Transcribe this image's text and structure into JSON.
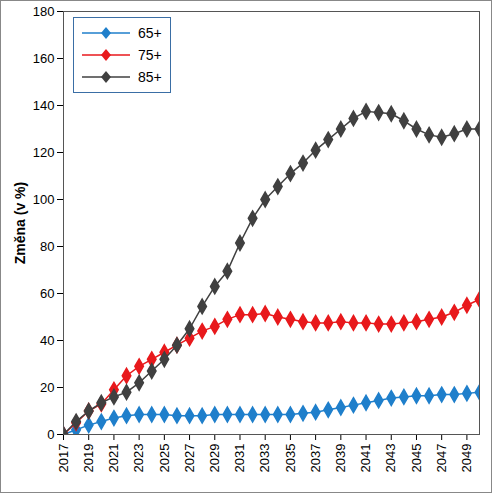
{
  "chart_data": {
    "type": "line",
    "y_label": "Změna (v %)",
    "x": [
      2017,
      2018,
      2019,
      2020,
      2021,
      2022,
      2023,
      2024,
      2025,
      2026,
      2027,
      2028,
      2029,
      2030,
      2031,
      2032,
      2033,
      2034,
      2035,
      2036,
      2037,
      2038,
      2039,
      2040,
      2041,
      2042,
      2043,
      2044,
      2045,
      2046,
      2047,
      2048,
      2049,
      2050
    ],
    "series": [
      {
        "name": "65+",
        "color": "#1f7fcb",
        "values": [
          0,
          2,
          4,
          5.5,
          7,
          8,
          8.5,
          8.5,
          8.5,
          8,
          8,
          8,
          8.5,
          8.5,
          8.5,
          8.5,
          8.5,
          8.5,
          8.5,
          9,
          9.5,
          10.5,
          11.5,
          12.5,
          13.5,
          14.5,
          15.5,
          16,
          16.5,
          16.5,
          17,
          17,
          17.5,
          18
        ]
      },
      {
        "name": "75+",
        "color": "#e8191c",
        "values": [
          0,
          5,
          10,
          13,
          19,
          25,
          29,
          32,
          35,
          38,
          41,
          44,
          46,
          49,
          51,
          51,
          51.5,
          50,
          49,
          48,
          47.5,
          47.5,
          48,
          47.5,
          47.5,
          47,
          47,
          47.5,
          48,
          49,
          50,
          52,
          55,
          57.5
        ]
      },
      {
        "name": "85+",
        "color": "#404040",
        "values": [
          0,
          5.5,
          10,
          13.5,
          16,
          18,
          22,
          27,
          32,
          38,
          45,
          54.5,
          63,
          69.5,
          81.5,
          92,
          100,
          105.5,
          111,
          115.5,
          121,
          125.5,
          130,
          134.5,
          137.5,
          137,
          136.5,
          133.5,
          130,
          127.5,
          126.5,
          128,
          130,
          130
        ]
      }
    ],
    "xlim": [
      2017,
      2050
    ],
    "xticks": [
      2017,
      2019,
      2021,
      2023,
      2025,
      2027,
      2029,
      2031,
      2033,
      2035,
      2037,
      2039,
      2041,
      2043,
      2045,
      2047,
      2049
    ],
    "ylim": [
      0,
      180
    ],
    "yticks": [
      0,
      20,
      40,
      60,
      80,
      100,
      120,
      140,
      160,
      180
    ],
    "grid": false,
    "legend": "top-left",
    "marker": "diamond",
    "line_style": "solid"
  }
}
